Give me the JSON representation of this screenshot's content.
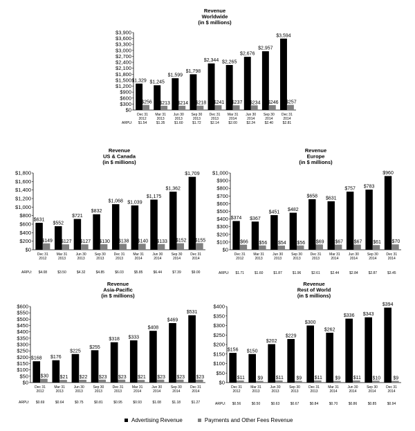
{
  "legend": {
    "series1": "Advertising Revenue",
    "series2": "Payments and Other Fees Revenue",
    "color1": "#000000",
    "color2": "#808080"
  },
  "chart_data": [
    {
      "type": "bar",
      "title": [
        "Revenue",
        "Worldwide",
        "(in $ millions)"
      ],
      "categories": [
        [
          "Dec 31",
          "2012"
        ],
        [
          "Mar 31",
          "2013"
        ],
        [
          "Jun 30",
          "2013"
        ],
        [
          "Sep 30",
          "2013"
        ],
        [
          "Dec 31",
          "2013"
        ],
        [
          "Mar 31",
          "2014"
        ],
        [
          "Jun 30",
          "2014"
        ],
        [
          "Sep 30",
          "2014"
        ],
        [
          "Dec 31",
          "2014"
        ]
      ],
      "series": [
        {
          "name": "Advertising Revenue",
          "values": [
            1329,
            1245,
            1599,
            1798,
            2344,
            2265,
            2676,
            2957,
            3594
          ],
          "labels": [
            "$1,329",
            "$1,245",
            "$1,599",
            "$1,798",
            "$2,344",
            "$2,265",
            "$2,676",
            "$2,957",
            "$3,594"
          ]
        },
        {
          "name": "Payments and Other Fees Revenue",
          "values": [
            256,
            213,
            214,
            218,
            241,
            237,
            234,
            246,
            257
          ],
          "labels": [
            "$256",
            "$213",
            "$214",
            "$218",
            "$241",
            "$237",
            "$234",
            "$246",
            "$257"
          ]
        }
      ],
      "ylim": [
        0,
        3900
      ],
      "yticks": [
        "$0",
        "$300",
        "$600",
        "$900",
        "$1,200",
        "$1,500",
        "$1,800",
        "$2,100",
        "$2,400",
        "$2,700",
        "$3,000",
        "$3,300",
        "$3,600",
        "$3,900"
      ],
      "arpu_label": "ARPU:",
      "arpu": [
        "$1.54",
        "$1.35",
        "$1.60",
        "$1.72",
        "$2.14",
        "$2.00",
        "$2.24",
        "$2.40",
        "$2.81"
      ]
    },
    {
      "type": "bar",
      "title": [
        "Revenue",
        "US & Canada",
        "(in $ millions)"
      ],
      "categories": [
        [
          "Dec 31",
          "2012"
        ],
        [
          "Mar 31",
          "2013"
        ],
        [
          "Jun 30",
          "2013"
        ],
        [
          "Sep 30",
          "2013"
        ],
        [
          "Dec 31",
          "2013"
        ],
        [
          "Mar 31",
          "2014"
        ],
        [
          "Jun 30",
          "2014"
        ],
        [
          "Sep 30",
          "2014"
        ],
        [
          "Dec 31",
          "2014"
        ]
      ],
      "series": [
        {
          "name": "Advertising Revenue",
          "values": [
            631,
            552,
            721,
            832,
            1068,
            1039,
            1175,
            1362,
            1709
          ],
          "labels": [
            "$631",
            "$552",
            "$721",
            "$832",
            "$1,068",
            "$1,039",
            "$1,175",
            "$1,362",
            "$1,709"
          ]
        },
        {
          "name": "Payments and Other Fees Revenue",
          "values": [
            149,
            127,
            127,
            130,
            138,
            140,
            133,
            152,
            155
          ],
          "labels": [
            "$149",
            "$127",
            "$127",
            "$130",
            "$138",
            "$140",
            "$133",
            "$152",
            "$155"
          ]
        }
      ],
      "ylim": [
        0,
        1800
      ],
      "yticks": [
        "$0",
        "$200",
        "$400",
        "$600",
        "$800",
        "$1,000",
        "$1,200",
        "$1,400",
        "$1,600",
        "$1,800"
      ],
      "arpu_label": "ARPU:",
      "arpu": [
        "$4.08",
        "$3.50",
        "$4.32",
        "$4.85",
        "$6.03",
        "$5.85",
        "$6.44",
        "$7.39",
        "$9.00"
      ]
    },
    {
      "type": "bar",
      "title": [
        "Revenue",
        "Europe",
        "(in $ millions)"
      ],
      "categories": [
        [
          "Dec 31",
          "2012"
        ],
        [
          "Mar 31",
          "2013"
        ],
        [
          "Jun 30",
          "2013"
        ],
        [
          "Sep 30",
          "2013"
        ],
        [
          "Dec 31",
          "2013"
        ],
        [
          "Mar 31",
          "2014"
        ],
        [
          "Jun 30",
          "2014"
        ],
        [
          "Sep 30",
          "2014"
        ],
        [
          "Dec 31",
          "2014"
        ]
      ],
      "series": [
        {
          "name": "Advertising Revenue",
          "values": [
            374,
            367,
            451,
            482,
            658,
            631,
            757,
            783,
            960
          ],
          "labels": [
            "$374",
            "$367",
            "$451",
            "$482",
            "$658",
            "$631",
            "$757",
            "$783",
            "$960"
          ]
        },
        {
          "name": "Payments and Other Fees Revenue",
          "values": [
            66,
            56,
            54,
            56,
            69,
            67,
            67,
            61,
            70
          ],
          "labels": [
            "$66",
            "$56",
            "$54",
            "$56",
            "$69",
            "$67",
            "$67",
            "$61",
            "$70"
          ]
        }
      ],
      "ylim": [
        0,
        1000
      ],
      "yticks": [
        "$0",
        "$100",
        "$200",
        "$300",
        "$400",
        "$500",
        "$600",
        "$700",
        "$800",
        "$900",
        "$1,000"
      ],
      "arpu_label": "ARPU:",
      "arpu": [
        "$1.71",
        "$1.60",
        "$1.87",
        "$1.96",
        "$2.61",
        "$2.44",
        "$2.84",
        "$2.87",
        "$3.45"
      ]
    },
    {
      "type": "bar",
      "title": [
        "Revenue",
        "Asia-Pacific",
        "(in $ millions)"
      ],
      "categories": [
        [
          "Dec 31",
          "2012"
        ],
        [
          "Mar 31",
          "2013"
        ],
        [
          "Jun 30",
          "2013"
        ],
        [
          "Sep 30",
          "2013"
        ],
        [
          "Dec 31",
          "2013"
        ],
        [
          "Mar 31",
          "2014"
        ],
        [
          "Jun 30",
          "2014"
        ],
        [
          "Sep 30",
          "2014"
        ],
        [
          "Dec 31",
          "2014"
        ]
      ],
      "series": [
        {
          "name": "Advertising Revenue",
          "values": [
            168,
            176,
            225,
            255,
            318,
            333,
            408,
            469,
            531
          ],
          "labels": [
            "$168",
            "$176",
            "$225",
            "$255",
            "$318",
            "$333",
            "$408",
            "$469",
            "$531"
          ]
        },
        {
          "name": "Payments and Other Fees Revenue",
          "values": [
            30,
            21,
            22,
            23,
            23,
            21,
            23,
            23,
            23
          ],
          "labels": [
            "$30",
            "$21",
            "$22",
            "$23",
            "$23",
            "$21",
            "$23",
            "$23",
            "$23"
          ]
        }
      ],
      "ylim": [
        0,
        600
      ],
      "yticks": [
        "$0",
        "$50",
        "$100",
        "$150",
        "$200",
        "$250",
        "$300",
        "$350",
        "$400",
        "$450",
        "$500",
        "$550",
        "$600"
      ],
      "arpu_label": "ARPU:",
      "arpu": [
        "$0.69",
        "$0.64",
        "$0.75",
        "$0.81",
        "$0.95",
        "$0.93",
        "$1.08",
        "$1.18",
        "$1.27"
      ]
    },
    {
      "type": "bar",
      "title": [
        "Revenue",
        "Rest of World",
        "(in $ millions)"
      ],
      "categories": [
        [
          "Dec 31",
          "2012"
        ],
        [
          "Mar 31",
          "2013"
        ],
        [
          "Jun 30",
          "2013"
        ],
        [
          "Sep 30",
          "2013"
        ],
        [
          "Dec 31",
          "2013"
        ],
        [
          "Mar 31",
          "2014"
        ],
        [
          "Jun 30",
          "2014"
        ],
        [
          "Sep 30",
          "2014"
        ],
        [
          "Dec 31",
          "2014"
        ]
      ],
      "series": [
        {
          "name": "Advertising Revenue",
          "values": [
            156,
            150,
            202,
            229,
            300,
            262,
            336,
            343,
            394
          ],
          "labels": [
            "$156",
            "$150",
            "$202",
            "$229",
            "$300",
            "$262",
            "$336",
            "$343",
            "$394"
          ]
        },
        {
          "name": "Payments and Other Fees Revenue",
          "values": [
            11,
            9,
            11,
            9,
            11,
            9,
            11,
            10,
            9
          ],
          "labels": [
            "$11",
            "$9",
            "$11",
            "$9",
            "$11",
            "$9",
            "$11",
            "$10",
            "$9"
          ]
        }
      ],
      "ylim": [
        0,
        400
      ],
      "yticks": [
        "$0",
        "$50",
        "$100",
        "$150",
        "$200",
        "$250",
        "$300",
        "$350",
        "$400"
      ],
      "arpu_label": "ARPU:",
      "arpu": [
        "$0.56",
        "$0.50",
        "$0.63",
        "$0.67",
        "$0.84",
        "$0.70",
        "$0.86",
        "$0.85",
        "$0.94"
      ]
    }
  ]
}
